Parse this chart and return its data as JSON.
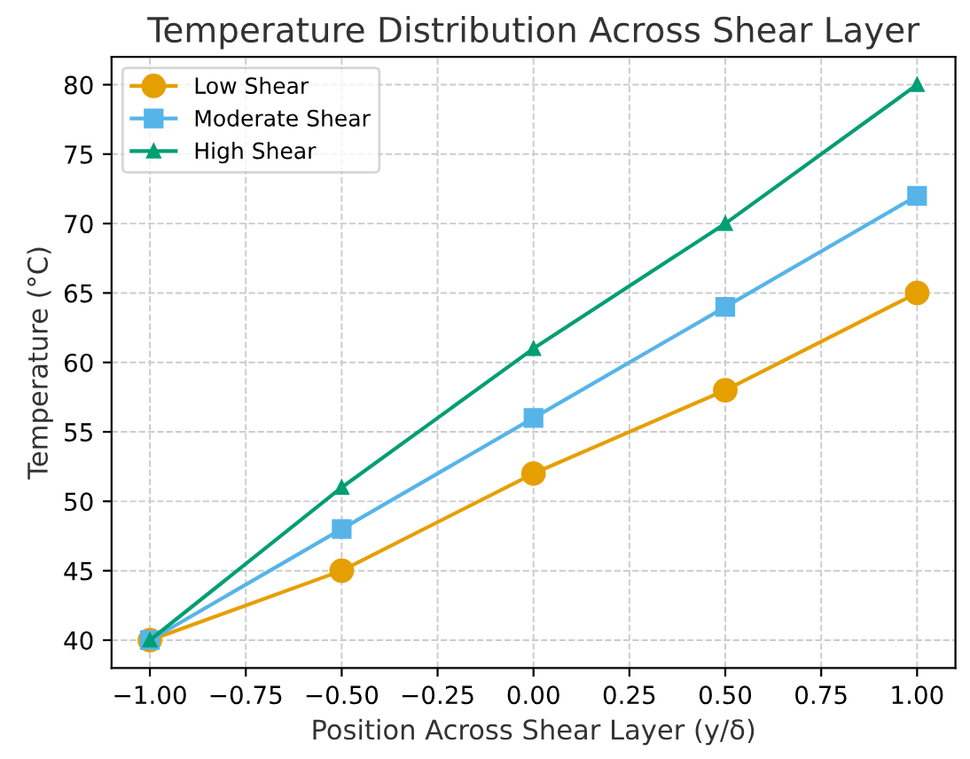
{
  "chart_data": {
    "type": "line",
    "title": "Temperature Distribution Across Shear Layer",
    "xlabel": "Position Across Shear Layer (y/δ)",
    "ylabel": "Temperature (°C)",
    "x": [
      -1.0,
      -0.5,
      0.0,
      0.5,
      1.0
    ],
    "series": [
      {
        "name": "Low Shear",
        "color": "#e69f00",
        "marker": "circle",
        "values": [
          40,
          45,
          52,
          58,
          65
        ]
      },
      {
        "name": "Moderate Shear",
        "color": "#56b4e9",
        "marker": "square",
        "values": [
          40,
          48,
          56,
          64,
          72
        ]
      },
      {
        "name": "High Shear",
        "color": "#009e73",
        "marker": "triangle",
        "values": [
          40,
          51,
          61,
          70,
          80
        ]
      }
    ],
    "xlim": [
      -1.1,
      1.1
    ],
    "ylim": [
      38,
      82
    ],
    "xticks": [
      {
        "value": -1.0,
        "label": "−1.00"
      },
      {
        "value": -0.75,
        "label": "−0.75"
      },
      {
        "value": -0.5,
        "label": "−0.50"
      },
      {
        "value": -0.25,
        "label": "−0.25"
      },
      {
        "value": 0.0,
        "label": "0.00"
      },
      {
        "value": 0.25,
        "label": "0.25"
      },
      {
        "value": 0.5,
        "label": "0.50"
      },
      {
        "value": 0.75,
        "label": "0.75"
      },
      {
        "value": 1.0,
        "label": "1.00"
      }
    ],
    "yticks": [
      40,
      45,
      50,
      55,
      60,
      65,
      70,
      75,
      80
    ],
    "grid": true,
    "legend": "top left",
    "line_style": "solid"
  }
}
